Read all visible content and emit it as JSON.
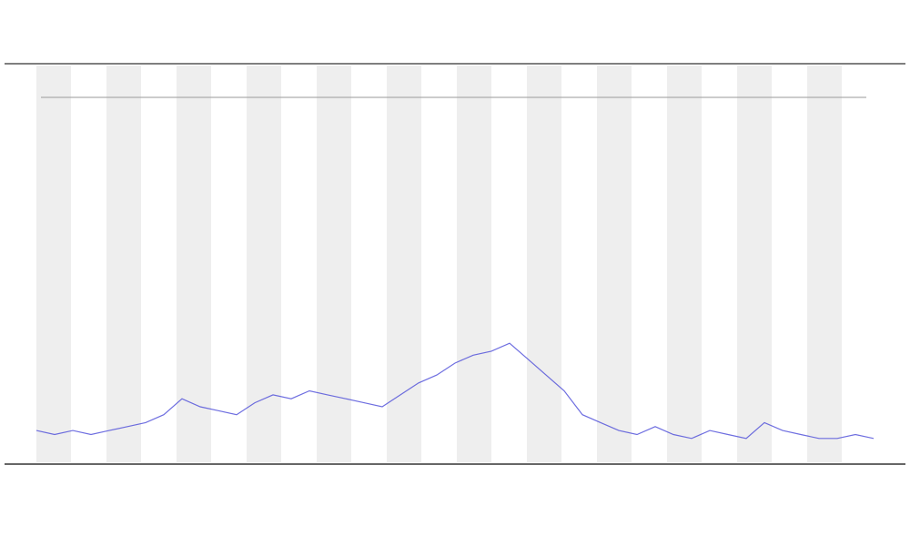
{
  "chart_data": {
    "type": "line",
    "series": [
      {
        "color": "#4a4ad8",
        "values": [
          0.08,
          0.07,
          0.08,
          0.07,
          0.08,
          0.09,
          0.1,
          0.12,
          0.16,
          0.14,
          0.13,
          0.12,
          0.15,
          0.17,
          0.16,
          0.18,
          0.17,
          0.16,
          0.15,
          0.14,
          0.17,
          0.2,
          0.22,
          0.25,
          0.27,
          0.28,
          0.3,
          0.26,
          0.22,
          0.18,
          0.12,
          0.1,
          0.08,
          0.07,
          0.09,
          0.07,
          0.06,
          0.08,
          0.07,
          0.06,
          0.1,
          0.08,
          0.07,
          0.06,
          0.06,
          0.07,
          0.06
        ]
      }
    ],
    "ylim": [
      0,
      1
    ]
  }
}
